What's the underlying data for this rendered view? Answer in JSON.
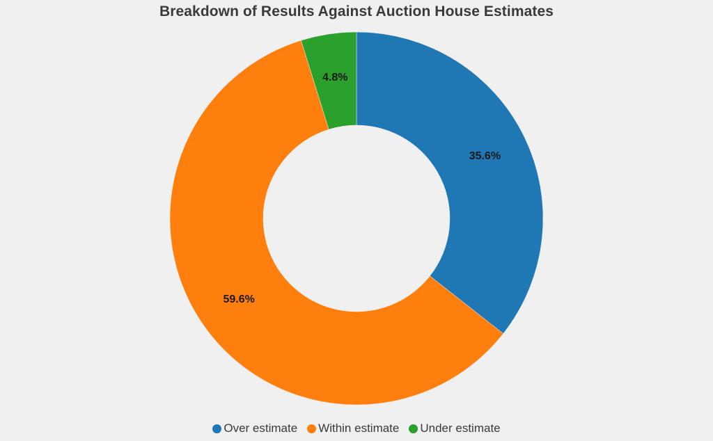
{
  "chart_data": {
    "type": "pie",
    "title": "Breakdown of Results Against Auction House Estimates",
    "hole": true,
    "legend_position": "bottom",
    "slices": [
      {
        "label": "Over estimate",
        "value": 35.6,
        "display": "35.6%",
        "color": "#1f77b4"
      },
      {
        "label": "Within estimate",
        "value": 59.6,
        "display": "59.6%",
        "color": "#ff7f0e"
      },
      {
        "label": "Under estimate",
        "value": 4.8,
        "display": "4.8%",
        "color": "#2ca02c"
      }
    ]
  }
}
